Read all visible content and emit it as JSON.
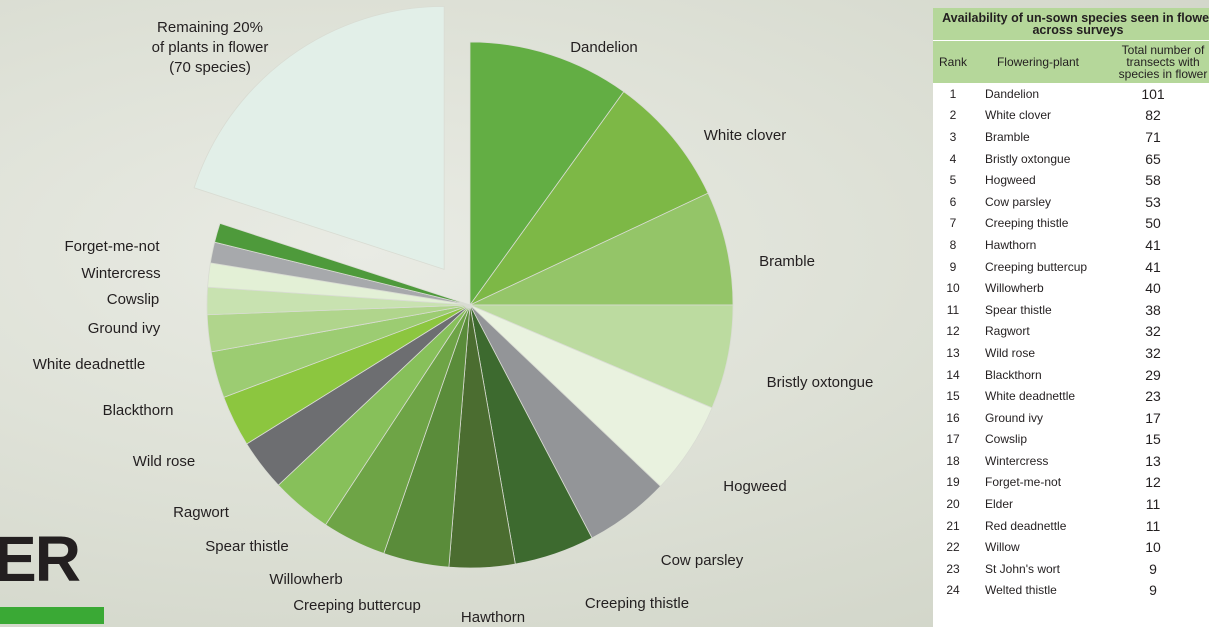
{
  "heading": "ER",
  "chart_data": {
    "type": "pie",
    "categories": [
      "Dandelion",
      "White clover",
      "Bramble",
      "Bristly oxtongue",
      "Hogweed",
      "Cow parsley",
      "Creeping thistle",
      "Hawthorn",
      "Creeping buttercup",
      "Willowherb",
      "Spear thistle",
      "Ragwort",
      "Wild rose",
      "Blackthorn",
      "White deadnettle",
      "Ground ivy",
      "Cowslip",
      "Wintercress",
      "Forget-me-not",
      "Remaining 20%\nof plants in flower\n(70 species)"
    ],
    "values": [
      101,
      82,
      71,
      65,
      58,
      53,
      50,
      41,
      41,
      40,
      38,
      32,
      32,
      29,
      23,
      17,
      15,
      13,
      12,
      203
    ],
    "colors": [
      "#63ae44",
      "#7db846",
      "#94c568",
      "#bcdba0",
      "#e9f2df",
      "#939598",
      "#3d6a2f",
      "#4b6d30",
      "#5a8c3a",
      "#6ea446",
      "#87c05a",
      "#6d6e71",
      "#8cc63f",
      "#9ccc72",
      "#b0d58c",
      "#c8e2b0",
      "#e3f0d6",
      "#a7a9ac",
      "#4e9a3b",
      "#e2efe8"
    ],
    "exploded": [
      19
    ]
  },
  "table": {
    "title": "Availability of un-sown species seen in flower across surveys",
    "columns": [
      "Rank",
      "Flowering-plant",
      "Total number of transects with species in flower"
    ],
    "rows": [
      [
        "1",
        "Dandelion",
        "101"
      ],
      [
        "2",
        "White clover",
        "82"
      ],
      [
        "3",
        "Bramble",
        "71"
      ],
      [
        "4",
        "Bristly oxtongue",
        "65"
      ],
      [
        "5",
        "Hogweed",
        "58"
      ],
      [
        "6",
        "Cow parsley",
        "53"
      ],
      [
        "7",
        "Creeping thistle",
        "50"
      ],
      [
        "8",
        "Hawthorn",
        "41"
      ],
      [
        "9",
        "Creeping buttercup",
        "41"
      ],
      [
        "10",
        "Willowherb",
        "40"
      ],
      [
        "11",
        "Spear thistle",
        "38"
      ],
      [
        "12",
        "Ragwort",
        "32"
      ],
      [
        "13",
        "Wild rose",
        "32"
      ],
      [
        "14",
        "Blackthorn",
        "29"
      ],
      [
        "15",
        "White deadnettle",
        "23"
      ],
      [
        "16",
        "Ground ivy",
        "17"
      ],
      [
        "17",
        "Cowslip",
        "15"
      ],
      [
        "18",
        "Wintercress",
        "13"
      ],
      [
        "19",
        "Forget-me-not",
        "12"
      ],
      [
        "20",
        "Elder",
        "11"
      ],
      [
        "21",
        "Red deadnettle",
        "11"
      ],
      [
        "22",
        "Willow",
        "10"
      ],
      [
        "23",
        "St John's wort",
        "9"
      ],
      [
        "24",
        "Welted thistle",
        "9"
      ]
    ]
  }
}
